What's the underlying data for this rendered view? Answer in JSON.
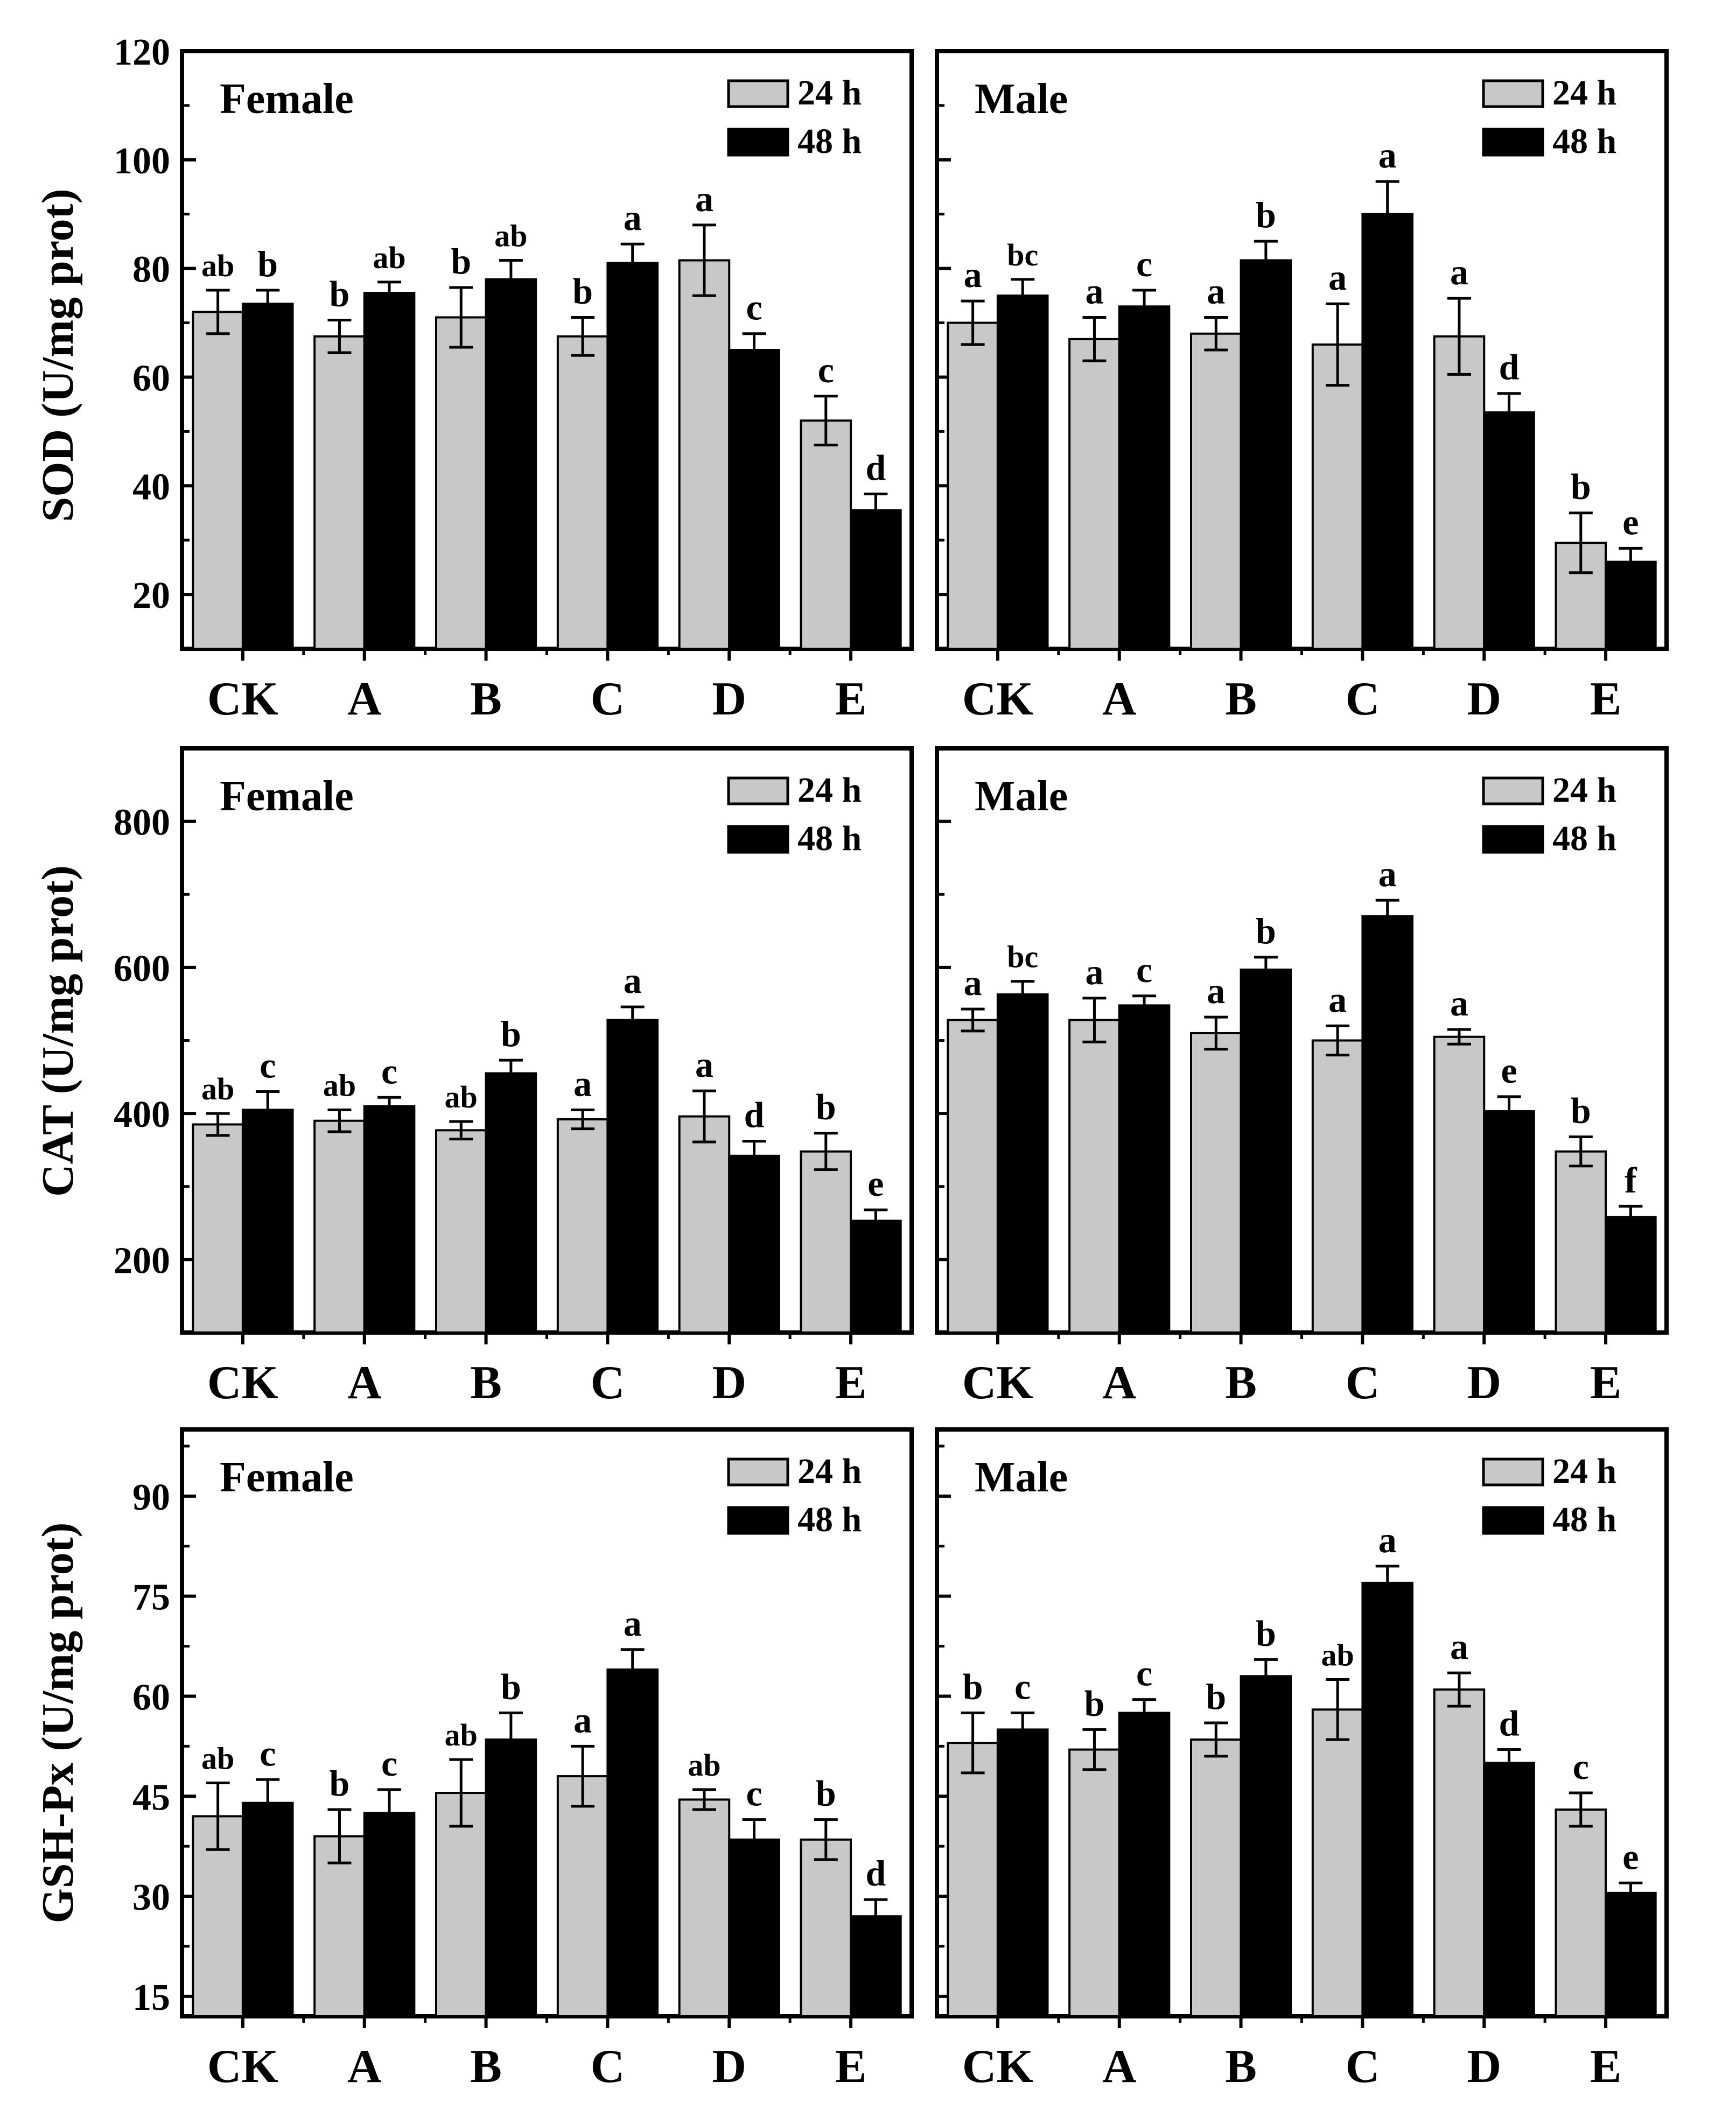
{
  "figure": {
    "y_titles": [
      "SOD (U/mg prot)",
      "CAT (U/mg prot)",
      "GSH-Px (U/mg prot)"
    ],
    "series_colors": {
      "24 h": "#c8c8c8",
      "48 h": "#000000"
    }
  },
  "chart_data": [
    {
      "type": "bar",
      "title": "Female",
      "ylabel": "SOD (U/mg prot)",
      "xlabel": "",
      "ylim": [
        10,
        120
      ],
      "yticks": [
        20,
        40,
        60,
        80,
        100,
        120
      ],
      "show_tick_labels": true,
      "legend": "top-right",
      "categories": [
        "CK",
        "A",
        "B",
        "C",
        "D",
        "E"
      ],
      "series": [
        {
          "name": "24 h",
          "values": [
            72,
            67.5,
            71,
            67.5,
            81.5,
            52
          ],
          "errors": [
            4,
            3,
            5.5,
            3.5,
            6.5,
            4.5
          ],
          "labels": [
            "ab",
            "b",
            "b",
            "b",
            "a",
            "c"
          ]
        },
        {
          "name": "48 h",
          "values": [
            73.5,
            75.5,
            78,
            81,
            65,
            35.5
          ],
          "errors": [
            2.5,
            2,
            3.5,
            3.5,
            3,
            3
          ],
          "labels": [
            "b",
            "ab",
            "ab",
            "a",
            "c",
            "d"
          ]
        }
      ]
    },
    {
      "type": "bar",
      "title": "Male",
      "ylabel": "",
      "xlabel": "",
      "ylim": [
        10,
        120
      ],
      "yticks": [
        20,
        40,
        60,
        80,
        100,
        120
      ],
      "show_tick_labels": false,
      "legend": "top-right",
      "categories": [
        "CK",
        "A",
        "B",
        "C",
        "D",
        "E"
      ],
      "series": [
        {
          "name": "24 h",
          "values": [
            70,
            67,
            68,
            66,
            67.5,
            29.5
          ],
          "errors": [
            4,
            4,
            3,
            7.5,
            7,
            5.5
          ],
          "labels": [
            "a",
            "a",
            "a",
            "a",
            "a",
            "b"
          ]
        },
        {
          "name": "48 h",
          "values": [
            75,
            73,
            81.5,
            90,
            53.5,
            26
          ],
          "errors": [
            3,
            3,
            3.5,
            6,
            3.5,
            2.5
          ],
          "labels": [
            "bc",
            "c",
            "b",
            "a",
            "d",
            "e"
          ]
        }
      ]
    },
    {
      "type": "bar",
      "title": "Female",
      "ylabel": "CAT (U/mg prot)",
      "xlabel": "",
      "ylim": [
        100,
        900
      ],
      "yticks": [
        200,
        400,
        600,
        800
      ],
      "show_tick_labels": true,
      "legend": "top-right",
      "categories": [
        "CK",
        "A",
        "B",
        "C",
        "D",
        "E"
      ],
      "series": [
        {
          "name": "24 h",
          "values": [
            385,
            390,
            377,
            392,
            396,
            348
          ],
          "errors": [
            15,
            15,
            12,
            13,
            35,
            25
          ],
          "labels": [
            "ab",
            "ab",
            "ab",
            "a",
            "a",
            "b"
          ]
        },
        {
          "name": "48 h",
          "values": [
            405,
            410,
            455,
            528,
            342,
            253
          ],
          "errors": [
            25,
            12,
            18,
            18,
            20,
            15
          ],
          "labels": [
            "c",
            "c",
            "b",
            "a",
            "d",
            "e"
          ]
        }
      ]
    },
    {
      "type": "bar",
      "title": "Male",
      "ylabel": "",
      "xlabel": "",
      "ylim": [
        100,
        900
      ],
      "yticks": [
        200,
        400,
        600,
        800
      ],
      "show_tick_labels": false,
      "legend": "top-right",
      "categories": [
        "CK",
        "A",
        "B",
        "C",
        "D",
        "E"
      ],
      "series": [
        {
          "name": "24 h",
          "values": [
            528,
            528,
            510,
            500,
            505,
            348
          ],
          "errors": [
            15,
            30,
            22,
            20,
            10,
            20
          ],
          "labels": [
            "a",
            "a",
            "a",
            "a",
            "a",
            "b"
          ]
        },
        {
          "name": "48 h",
          "values": [
            563,
            548,
            597,
            670,
            403,
            258
          ],
          "errors": [
            18,
            13,
            17,
            22,
            20,
            15
          ],
          "labels": [
            "bc",
            "c",
            "b",
            "a",
            "e",
            "f"
          ]
        }
      ]
    },
    {
      "type": "bar",
      "title": "Female",
      "ylabel": "GSH-Px (U/mg prot)",
      "xlabel": "",
      "ylim": [
        12,
        100
      ],
      "yticks": [
        15,
        30,
        45,
        60,
        75,
        90
      ],
      "show_tick_labels": true,
      "legend": "top-right",
      "categories": [
        "CK",
        "A",
        "B",
        "C",
        "D",
        "E"
      ],
      "series": [
        {
          "name": "24 h",
          "values": [
            42,
            39,
            45.5,
            48,
            44.5,
            38.5
          ],
          "errors": [
            5,
            4,
            5,
            4.5,
            1.5,
            3
          ],
          "labels": [
            "ab",
            "b",
            "ab",
            "a",
            "ab",
            "b"
          ]
        },
        {
          "name": "48 h",
          "values": [
            44,
            42.5,
            53.5,
            64,
            38.5,
            27
          ],
          "errors": [
            3.5,
            3.5,
            4,
            3,
            3,
            2.5
          ],
          "labels": [
            "c",
            "c",
            "b",
            "a",
            "c",
            "d"
          ]
        }
      ]
    },
    {
      "type": "bar",
      "title": "Male",
      "ylabel": "",
      "xlabel": "",
      "ylim": [
        12,
        100
      ],
      "yticks": [
        15,
        30,
        45,
        60,
        75,
        90
      ],
      "show_tick_labels": false,
      "legend": "top-right",
      "categories": [
        "CK",
        "A",
        "B",
        "C",
        "D",
        "E"
      ],
      "series": [
        {
          "name": "24 h",
          "values": [
            53,
            52,
            53.5,
            58,
            61,
            43
          ],
          "errors": [
            4.5,
            3,
            2.5,
            4.5,
            2.5,
            2.5
          ],
          "labels": [
            "b",
            "b",
            "b",
            "ab",
            "a",
            "c"
          ]
        },
        {
          "name": "48 h",
          "values": [
            55,
            57.5,
            63,
            77,
            50,
            30.5
          ],
          "errors": [
            2.5,
            2,
            2.5,
            2.5,
            2,
            1.5
          ],
          "labels": [
            "c",
            "c",
            "b",
            "a",
            "d",
            "e"
          ]
        }
      ]
    }
  ]
}
